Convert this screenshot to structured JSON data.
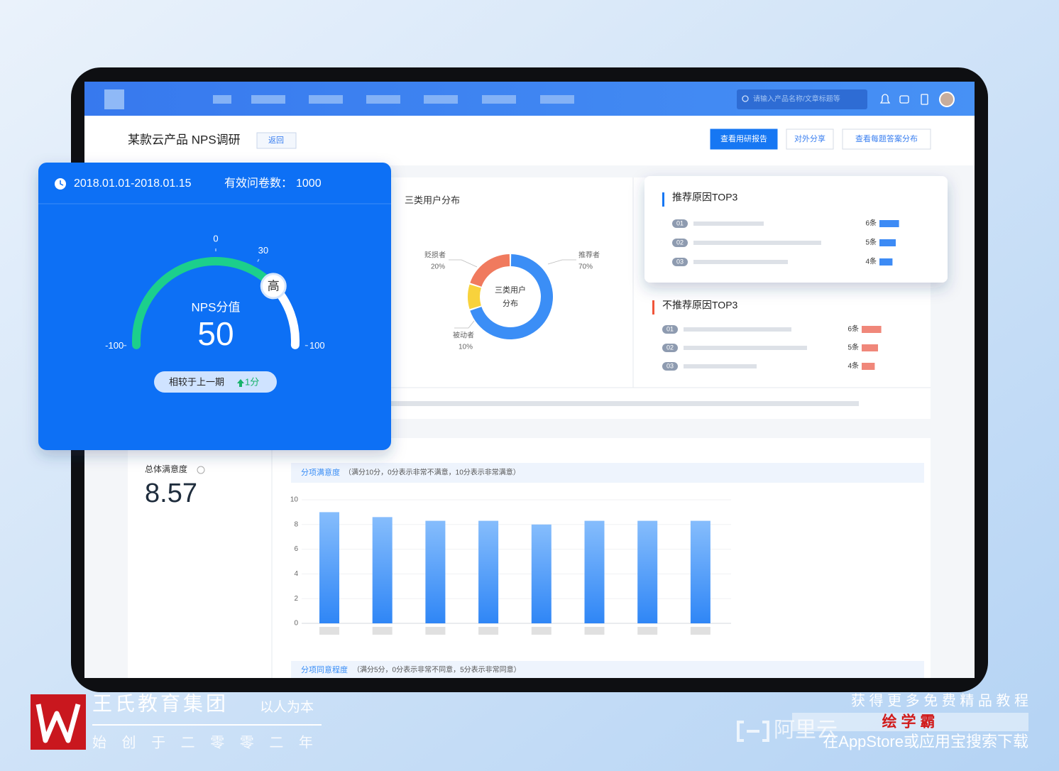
{
  "header": {
    "search_placeholder": "请输入产品名称/文章标题等"
  },
  "page": {
    "title": "某款云产品 NPS调研",
    "back_button": "返回",
    "actions": [
      "查看用研报告",
      "对外分享",
      "查看每题答案分布"
    ]
  },
  "nps_card": {
    "date_range": "2018.01.01-2018.01.15",
    "responses_label": "有效问卷数：",
    "responses": 1000,
    "gauge": {
      "type": "gauge",
      "label": "NPS分值",
      "value": 50,
      "range": [
        -100,
        100
      ],
      "ticks": [
        -100,
        0,
        30,
        100
      ],
      "badge": "高",
      "color": "#1ccf8c"
    },
    "compare_label": "相较于上一期",
    "change": "1分"
  },
  "user_distribution": {
    "type": "donut",
    "title": "三类用户分布",
    "center_label": [
      "三类用户",
      "分布"
    ],
    "categories": [
      "推荐者",
      "被动者",
      "贬损者"
    ],
    "values": [
      70,
      10,
      20
    ],
    "value_labels": [
      "70%",
      "10%",
      "20%"
    ],
    "colors": [
      "#3b8ef6",
      "#f8d23c",
      "#f07a5e"
    ]
  },
  "promote_reasons": {
    "title": "推荐原因TOP3",
    "ranks": [
      "01",
      "02",
      "03"
    ],
    "values": [
      6,
      5,
      4
    ],
    "value_labels": [
      "6条",
      "5条",
      "4条"
    ],
    "color": "#3d8bf5"
  },
  "detract_reasons": {
    "title": "不推荐原因TOP3",
    "ranks": [
      "01",
      "02",
      "03"
    ],
    "values": [
      6,
      5,
      4
    ],
    "value_labels": [
      "6条",
      "5条",
      "4条"
    ],
    "color": "#f0877a"
  },
  "overall": {
    "label": "总体满意度",
    "value": 8.57
  },
  "item_satisfaction": {
    "type": "bar",
    "title": "分项满意度",
    "note": "（满分10分，0分表示非常不满意，10分表示非常满意）",
    "categories": [
      null,
      null,
      null,
      null,
      null,
      null,
      null,
      null
    ],
    "values": [
      9.0,
      8.6,
      8.3,
      8.3,
      8.0,
      8.3,
      8.3,
      8.3
    ],
    "ylim": [
      0,
      10
    ],
    "yticks": [
      0,
      2,
      4,
      6,
      8,
      10
    ],
    "color": "#2f86f6"
  },
  "item_agreement": {
    "title": "分项同意程度",
    "note": "（满分5分，0分表示非常不同意，5分表示非常同意）"
  },
  "watermark": {
    "brand": "王氏教育集团",
    "slogan": "以人为本",
    "founded": "始 创 于 二 零 零 二 年",
    "promo": "获 得 更 多 免 费 精 品 教 程",
    "app": "绘 学 霸",
    "download": "在AppStore或应用宝搜索下载",
    "cloud": "阿里云"
  }
}
